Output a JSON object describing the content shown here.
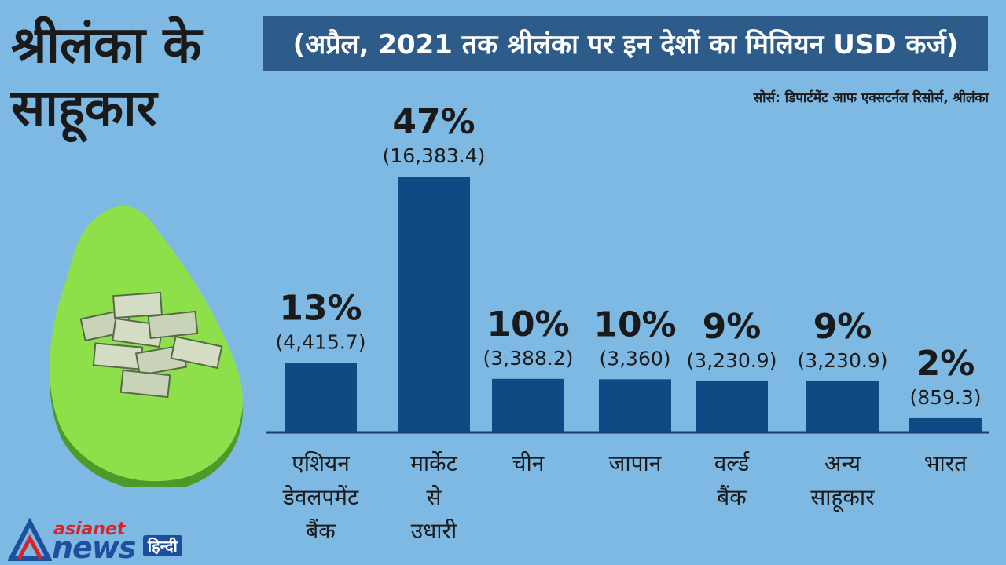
{
  "title": "श्रीलंका के साहूकार",
  "subtitle": "(अप्रैल, 2021 तक श्रीलंका पर इन देशों का मिलियन USD कर्ज)",
  "source": "सोर्स: डिपार्टमेंट आफ एक्सटर्नल रिसोर्स, श्रीलंका",
  "logo": {
    "top": "asianet",
    "main": "news",
    "badge": "हिन्दी"
  },
  "colors": {
    "background": "#7db9e3",
    "bar": "#0f4a85",
    "subtitle_bg": "#2d5c8a",
    "island": "#8ee04a"
  },
  "chart_data": {
    "type": "bar",
    "categories": [
      "एशियन डेवलपमेंट बैंक",
      "मार्केट से उधारी",
      "चीन",
      "जापान",
      "वर्ल्ड बैंक",
      "अन्य साहूकार",
      "भारत"
    ],
    "category_lines": [
      [
        "एशियन",
        "डेवलपमेंट",
        "बैंक"
      ],
      [
        "मार्केट",
        "से",
        "उधारी"
      ],
      [
        "चीन"
      ],
      [
        "जापान"
      ],
      [
        "वर्ल्ड",
        "बैंक"
      ],
      [
        "अन्य",
        "साहूकार"
      ],
      [
        "भारत"
      ]
    ],
    "values": [
      4415.7,
      16383.4,
      3388.2,
      3360,
      3230.9,
      3230.9,
      859.3
    ],
    "value_labels": [
      "(4,415.7)",
      "(16,383.4)",
      "(3,388.2)",
      "(3,360)",
      "(3,230.9)",
      "(3,230.9)",
      "(859.3)"
    ],
    "percent_labels": [
      "13%",
      "47%",
      "10%",
      "10%",
      "9%",
      "9%",
      "2%"
    ],
    "title": "अप्रैल, 2021 तक श्रीलंका पर इन देशों का मिलियन USD कर्ज",
    "xlabel": "",
    "ylabel": "मिलियन USD",
    "ylim": [
      0,
      16383.4
    ]
  }
}
